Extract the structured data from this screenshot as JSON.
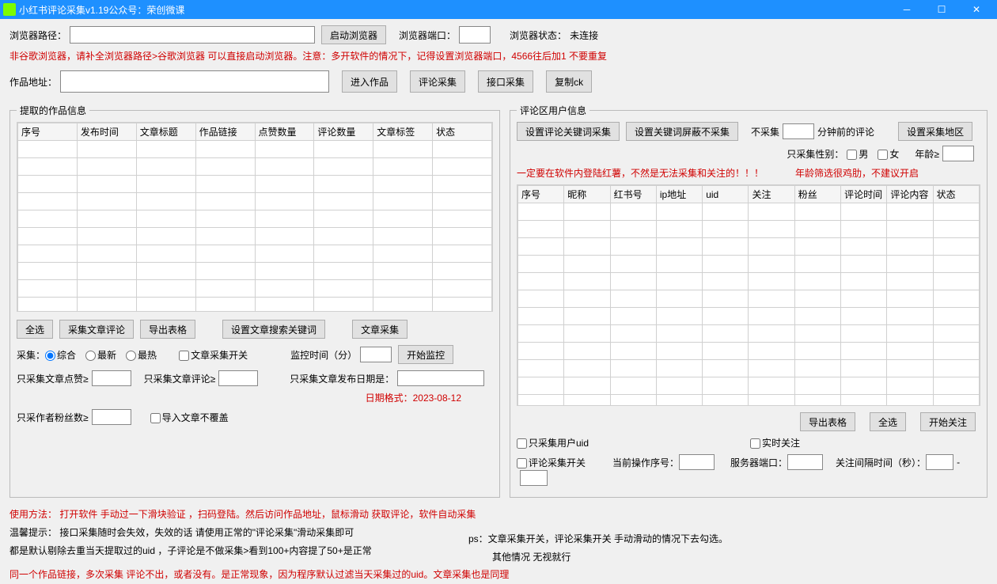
{
  "titlebar": {
    "title": "小红书评论采集v1.19公众号：荣创微课"
  },
  "top": {
    "browser_path_label": "浏览器路径：",
    "launch_browser_btn": "启动浏览器",
    "browser_port_label": "浏览器端口：",
    "browser_status_label": "浏览器状态：",
    "browser_status_value": "未连接",
    "hint1": "非谷歌浏览器，请补全浏览器路径>谷歌浏览器 可以直接启动浏览器。注意：多开软件的情况下，记得设置浏览器端口，4566往后加1  不要重复"
  },
  "work": {
    "work_url_label": "作品地址：",
    "enter_work_btn": "进入作品",
    "collect_comment_btn": "评论采集",
    "api_collect_btn": "接口采集",
    "copy_ck_btn": "复制ck"
  },
  "left": {
    "legend": "提取的作品信息",
    "columns": [
      "序号",
      "发布时间",
      "文章标题",
      "作品链接",
      "点赞数量",
      "评论数量",
      "文章标签",
      "状态"
    ],
    "select_all_btn": "全选",
    "collect_article_comment_btn": "采集文章评论",
    "export_table_btn": "导出表格",
    "set_article_keyword_btn": "设置文章搜索关键词",
    "article_collect_btn": "文章采集",
    "collect_label": "采集：",
    "radio_comprehensive": "综合",
    "radio_latest": "最新",
    "radio_hottest": "最热",
    "article_collect_switch": "文章采集开关",
    "monitor_time_label": "监控时间（分）",
    "start_monitor_btn": "开始监控",
    "only_like_label": "只采集文章点赞≥",
    "only_comment_label": "只采集文章评论≥",
    "only_publish_date_label": "只采集文章发布日期是：",
    "date_format_hint": "日期格式：2023-08-12",
    "only_author_fans_label": "只采作者粉丝数≥",
    "import_no_overwrite": "导入文章不覆盖"
  },
  "right": {
    "legend": "评论区用户信息",
    "set_comment_keyword_btn": "设置评论关键词采集",
    "set_block_keyword_btn": "设置关键词屏蔽不采集",
    "no_collect_label": "不采集",
    "minutes_ago_label": "分钟前的评论",
    "set_region_btn": "设置采集地区",
    "only_gender_label": "只采集性别：",
    "gender_male": "男",
    "gender_female": "女",
    "age_label": "年龄≥",
    "login_warning": "一定要在软件内登陆红薯，不然是无法采集和关注的！！！",
    "age_filter_note": "年龄筛选很鸡肋，不建议开启",
    "columns": [
      "序号",
      "昵称",
      "红书号",
      "ip地址",
      "uid",
      "关注",
      "粉丝",
      "评论时间",
      "评论内容",
      "状态"
    ],
    "export_table_btn": "导出表格",
    "select_all_btn": "全选",
    "start_follow_btn": "开始关注",
    "only_collect_uid": "只采集用户uid",
    "realtime_follow": "实时关注",
    "comment_collect_switch": "评论采集开关",
    "current_op_seq_label": "当前操作序号：",
    "server_port_label": "服务器端口：",
    "follow_interval_label": "关注间隔时间（秒）："
  },
  "footer": {
    "usage_label": "使用方法：",
    "usage_text1": "打开软件 手动过一下滑块验证  ，扫码登陆。然后访问作品地址，鼠标滑动 获取评论，软件自动采集",
    "tip_label": "温馨提示：",
    "tip_text": "接口采集随时会失效，失效的话 请使用正常的\"评论采集\"滑动采集即可",
    "dedup_text": "都是默认剔除去重当天提取过的uid ，子评论是不做采集>看到100+内容提了50+是正常",
    "same_link_text": "同一个作品链接，多次采集  评论不出，或者没有。是正常现象，因为程序默认过滤当天采集过的uid。文章采集也是同理",
    "ps_line1": "ps：文章采集开关，评论采集开关 手动滑动的情况下去勾选。",
    "ps_line2": "其他情况 无视就行"
  }
}
